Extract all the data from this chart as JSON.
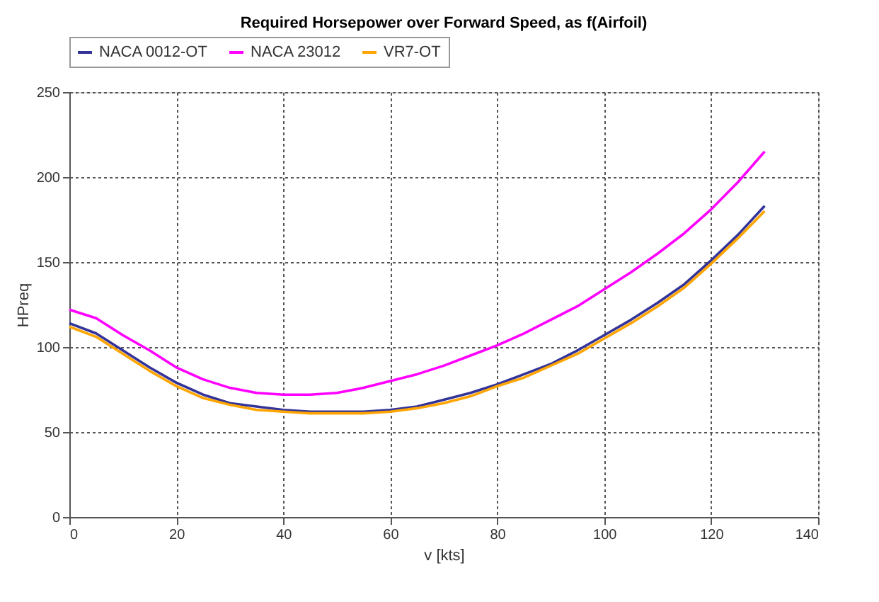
{
  "chart_data": {
    "type": "line",
    "title": "Required Horsepower over Forward Speed, as f(Airfoil)",
    "xlabel": "v [kts]",
    "ylabel": "HPreq",
    "x": [
      0,
      5,
      10,
      15,
      20,
      25,
      30,
      35,
      40,
      45,
      50,
      55,
      60,
      65,
      70,
      75,
      80,
      85,
      90,
      95,
      100,
      105,
      110,
      115,
      120,
      125,
      130
    ],
    "series": [
      {
        "name": "NACA 0012-OT",
        "color": "#333399",
        "values": [
          114,
          108,
          98,
          88,
          79,
          72,
          67,
          65,
          63,
          62,
          62,
          62,
          63,
          65,
          69,
          73,
          78,
          84,
          90,
          98,
          107,
          116,
          126,
          137,
          151,
          166,
          183
        ]
      },
      {
        "name": "NACA 23012",
        "color": "#ff00ff",
        "values": [
          122,
          117,
          107,
          98,
          88,
          81,
          76,
          73,
          72,
          72,
          73,
          76,
          80,
          84,
          89,
          95,
          101,
          108,
          116,
          124,
          134,
          144,
          155,
          167,
          181,
          197,
          215
        ]
      },
      {
        "name": "VR7-OT",
        "color": "#ffa500",
        "values": [
          112,
          106,
          96,
          86,
          77,
          70,
          66,
          63,
          62,
          61,
          61,
          61,
          62,
          64,
          67,
          71,
          77,
          82,
          89,
          96,
          105,
          114,
          124,
          135,
          149,
          164,
          180
        ]
      }
    ],
    "xlim": [
      0,
      140
    ],
    "xticks": [
      0,
      20,
      40,
      60,
      80,
      100,
      120,
      140
    ],
    "ylim": [
      0,
      250
    ],
    "yticks": [
      0,
      50,
      100,
      150,
      200,
      250
    ],
    "grid": true,
    "legend": "top",
    "marker": "none",
    "line_style": "solid"
  }
}
